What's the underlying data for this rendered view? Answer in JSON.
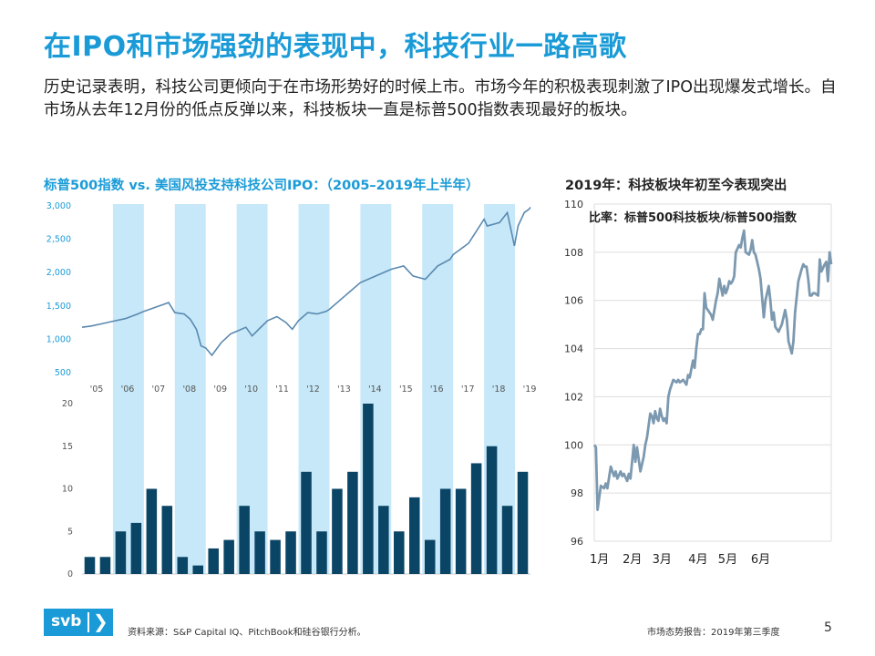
{
  "title": "在IPO和市场强劲的表现中，科技行业一路高歌",
  "intro": "历史记录表明，科技公司更倾向于在市场形势好的时候上市。市场今年的积极表现刺激了IPO出现爆发式增长。自市场从去年12月份的低点反弹以来，科技板块一直是标普500指数表现最好的板块。",
  "left_chart_title": "标普500指数 vs. 美国风投支持科技公司IPO：（2005–2019年上半年）",
  "right_chart_title": "2019年：科技板块年初至今表现突出",
  "footer": {
    "logo_text": "svb",
    "logo_chevron": "❯",
    "source": "资料来源：S&P Capital IQ、PitchBook和硅谷银行分析。",
    "report": "市场态势报告：2019年第三季度",
    "page": "5"
  },
  "colors": {
    "accent": "#1a9bd7",
    "shade": "#c6e8f8",
    "line": "#5a89b0",
    "bar": "#0b4566",
    "ratio_line": "#7c99b0",
    "grid": "#dddddd"
  },
  "chart_data": [
    {
      "type": "line",
      "title": "标普500指数",
      "x_tick_labels": [
        "'05",
        "'06",
        "'07",
        "'08",
        "'09",
        "'10",
        "'11",
        "'12",
        "'13",
        "'14",
        "'15",
        "'16",
        "'17",
        "'18",
        "'19"
      ],
      "x_range": [
        2005.0,
        2019.5
      ],
      "ylim": [
        500,
        3000
      ],
      "yticks": [
        500,
        1000,
        1500,
        2000,
        2500,
        3000
      ],
      "ytick_labels": [
        "500",
        "1,000",
        "1,500",
        "2,000",
        "2,500",
        "3,000"
      ],
      "shaded_years": [
        2006,
        2008,
        2010,
        2012,
        2014,
        2016,
        2018
      ],
      "series": {
        "name": "标普500指数",
        "x": [
          2005.0,
          2005.3,
          2005.6,
          2006.0,
          2006.4,
          2006.8,
          2007.0,
          2007.5,
          2007.8,
          2008.0,
          2008.3,
          2008.5,
          2008.7,
          2008.85,
          2009.0,
          2009.2,
          2009.5,
          2009.8,
          2010.0,
          2010.3,
          2010.5,
          2010.8,
          2011.0,
          2011.3,
          2011.6,
          2011.8,
          2012.0,
          2012.3,
          2012.6,
          2012.9,
          2013.0,
          2013.5,
          2014.0,
          2014.5,
          2015.0,
          2015.4,
          2015.7,
          2016.1,
          2016.5,
          2016.9,
          2017.0,
          2017.5,
          2018.0,
          2018.1,
          2018.5,
          2018.75,
          2018.98,
          2019.1,
          2019.3,
          2019.45,
          2019.5
        ],
        "values": [
          1180,
          1200,
          1230,
          1270,
          1310,
          1380,
          1420,
          1500,
          1550,
          1400,
          1380,
          1300,
          1150,
          900,
          870,
          760,
          950,
          1080,
          1120,
          1180,
          1050,
          1190,
          1280,
          1340,
          1250,
          1150,
          1280,
          1400,
          1380,
          1420,
          1450,
          1650,
          1850,
          1950,
          2050,
          2100,
          1950,
          1900,
          2100,
          2200,
          2270,
          2440,
          2800,
          2700,
          2750,
          2900,
          2400,
          2700,
          2900,
          2950,
          2980
        ]
      }
    },
    {
      "type": "bar",
      "title": "美国风投支持科技公司IPO",
      "categories": [
        "2005 H1",
        "2005 H2",
        "2006 H1",
        "2006 H2",
        "2007 H1",
        "2007 H2",
        "2008 H1",
        "2008 H2",
        "2009 H1",
        "2009 H2",
        "2010 H1",
        "2010 H2",
        "2011 H1",
        "2011 H2",
        "2012 H1",
        "2012 H2",
        "2013 H1",
        "2013 H2",
        "2014 H1",
        "2014 H2",
        "2015 H1",
        "2015 H2",
        "2016 H1",
        "2016 H2",
        "2017 H1",
        "2017 H2",
        "2018 H1",
        "2018 H2",
        "2019 H1"
      ],
      "values": [
        2,
        2,
        5,
        6,
        10,
        8,
        2,
        1,
        3,
        4,
        8,
        5,
        4,
        5,
        12,
        5,
        10,
        12,
        20,
        8,
        5,
        9,
        4,
        10,
        10,
        13,
        15,
        8,
        12
      ],
      "ylim": [
        0,
        20
      ],
      "yticks": [
        0,
        5,
        10,
        15,
        20
      ]
    },
    {
      "type": "line",
      "title": "比率：标普500科技板块/标普500指数",
      "annotation": "比率：标普500科技板块/标普500指数",
      "ylim": [
        96,
        110
      ],
      "yticks": [
        96,
        98,
        100,
        102,
        104,
        106,
        108,
        110
      ],
      "x_range": [
        0,
        7.2
      ],
      "x_tick_labels": [
        "1月",
        "2月",
        "3月",
        "4月",
        "5月",
        "6月"
      ],
      "x_tick_positions": [
        0.1,
        1.1,
        2.0,
        3.1,
        4.0,
        5.0
      ],
      "series": {
        "name": "比率",
        "x": [
          0,
          0.05,
          0.1,
          0.2,
          0.3,
          0.35,
          0.4,
          0.5,
          0.6,
          0.65,
          0.7,
          0.8,
          0.85,
          0.9,
          1.0,
          1.05,
          1.1,
          1.2,
          1.25,
          1.3,
          1.4,
          1.5,
          1.55,
          1.6,
          1.7,
          1.75,
          1.8,
          1.85,
          1.9,
          1.95,
          2.0,
          2.05,
          2.1,
          2.15,
          2.2,
          2.25,
          2.3,
          2.4,
          2.5,
          2.55,
          2.6,
          2.7,
          2.8,
          2.85,
          2.9,
          3.0,
          3.05,
          3.1,
          3.15,
          3.2,
          3.25,
          3.3,
          3.35,
          3.4,
          3.5,
          3.55,
          3.6,
          3.7,
          3.75,
          3.8,
          3.9,
          3.95,
          4.0,
          4.05,
          4.1,
          4.15,
          4.2,
          4.25,
          4.3,
          4.4,
          4.45,
          4.5,
          4.55,
          4.6,
          4.7,
          4.75,
          4.8,
          4.85,
          4.9,
          5.0,
          5.05,
          5.1,
          5.15,
          5.2,
          5.3,
          5.35,
          5.4,
          5.45,
          5.5,
          5.6,
          5.7,
          5.75,
          5.8,
          5.85,
          5.9,
          6.0,
          6.05,
          6.1,
          6.2,
          6.3,
          6.35,
          6.4,
          6.45,
          6.5,
          6.55,
          6.6,
          6.65,
          6.7,
          6.8,
          6.85,
          6.9,
          7.0,
          7.05,
          7.1,
          7.15,
          7.2
        ],
        "values": [
          100,
          99.9,
          97.3,
          98.3,
          98.2,
          98.4,
          98.2,
          99.1,
          98.7,
          98.9,
          98.6,
          98.9,
          98.7,
          98.8,
          98.5,
          98.8,
          98.6,
          100.0,
          99.3,
          99.9,
          98.9,
          99.5,
          100.0,
          100.3,
          101.3,
          101.2,
          100.9,
          101.4,
          101.1,
          101.0,
          101.5,
          101.2,
          101.0,
          101.1,
          100.9,
          102.0,
          102.3,
          102.7,
          102.6,
          102.7,
          102.6,
          102.7,
          102.5,
          102.9,
          102.8,
          103.5,
          103.2,
          104.0,
          104.6,
          104.6,
          104.8,
          104.8,
          106.3,
          105.7,
          105.5,
          105.4,
          105.2,
          106.0,
          106.3,
          106.9,
          106.2,
          106.6,
          106.3,
          106.5,
          106.8,
          106.7,
          106.8,
          107.0,
          108.0,
          108.3,
          108.2,
          108.6,
          108.9,
          108.0,
          107.9,
          108.1,
          108.5,
          108.0,
          107.9,
          107.3,
          106.9,
          106.1,
          105.3,
          106.0,
          106.6,
          106.0,
          105.2,
          105.5,
          104.9,
          104.7,
          105.0,
          105.3,
          105.6,
          105.2,
          104.3,
          103.8,
          104.3,
          105.5,
          106.8,
          107.3,
          107.5,
          107.4,
          107.4,
          106.9,
          106.2,
          106.2,
          106.3,
          106.3,
          106.2,
          107.7,
          107.2,
          107.5,
          107.6,
          106.8,
          108.0,
          107.5
        ]
      }
    }
  ]
}
